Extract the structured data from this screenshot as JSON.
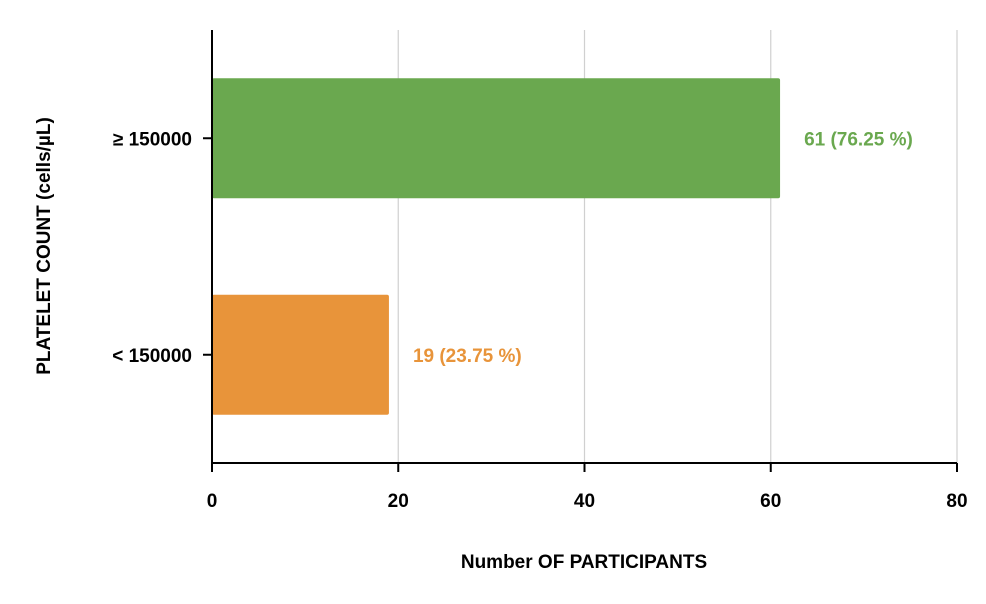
{
  "chart_data": {
    "type": "bar",
    "orientation": "horizontal",
    "categories": [
      "≥ 150000",
      "< 150000"
    ],
    "values": [
      61,
      19
    ],
    "data_labels": [
      "61 (76.25 %)",
      "19 (23.75 %)"
    ],
    "colors": [
      "#6aa84f",
      "#e8943a"
    ],
    "xlabel": "Number OF PARTICIPANTS",
    "ylabel": "PLATELET COUNT (cells/µL)",
    "xlim": [
      0,
      80
    ],
    "x_ticks": [
      0,
      20,
      40,
      60,
      80
    ],
    "grid": "vertical",
    "legend": "none"
  }
}
